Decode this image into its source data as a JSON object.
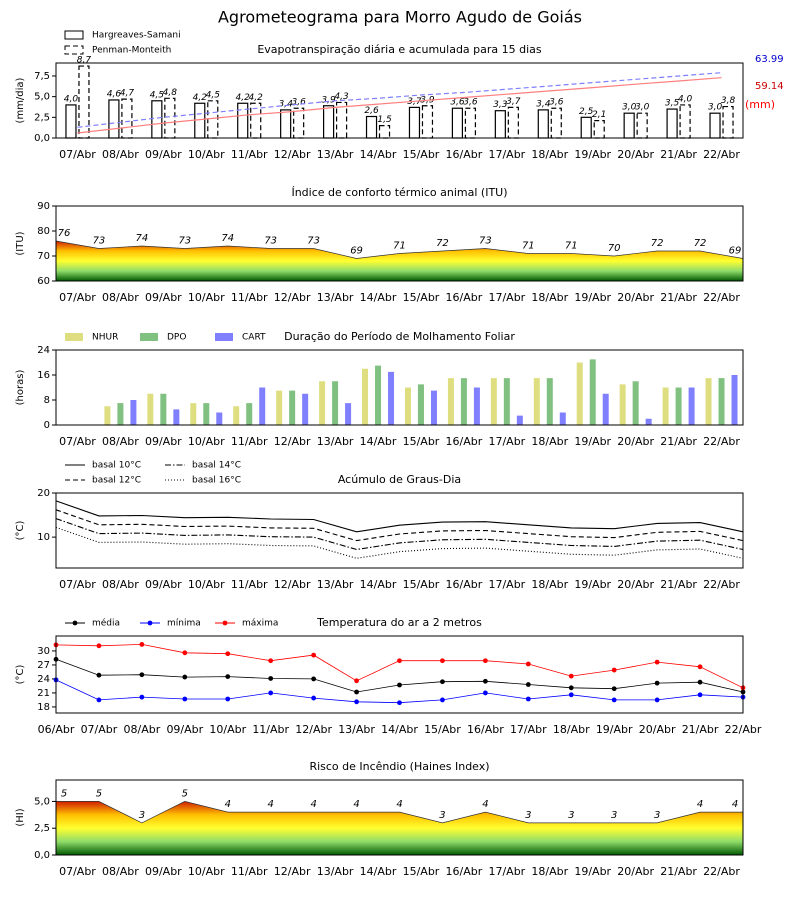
{
  "title": "Agrometeograma para Morro Agudo de Goiás",
  "chart_data": [
    {
      "type": "bar",
      "title": "Evapotranspiração diária e acumulada para 15 dias",
      "ylabel": "(mm/dia)",
      "y2label": "(mm)",
      "y2label_color": "#ff0000",
      "categories": [
        "07/Abr",
        "08/Abr",
        "09/Abr",
        "10/Abr",
        "11/Abr",
        "12/Abr",
        "13/Abr",
        "14/Abr",
        "15/Abr",
        "16/Abr",
        "17/Abr",
        "18/Abr",
        "19/Abr",
        "20/Abr",
        "21/Abr",
        "22/Abr"
      ],
      "ylim": [
        0,
        9.07
      ],
      "yticks": [
        {
          "value": 0,
          "label": "0,0"
        },
        {
          "value": 2.5,
          "label": "2,5"
        },
        {
          "value": 5,
          "label": "5,0"
        },
        {
          "value": 7.5,
          "label": "7,5"
        }
      ],
      "y2lim": [
        0,
        73.5
      ],
      "legend": "upper left",
      "legend_ncol": 1,
      "series": [
        {
          "name": "Hargreaves-Samani",
          "color": "#ffffff",
          "edgecolor": "#000000",
          "style": "solid",
          "values": [
            4.0,
            4.6,
            4.5,
            4.2,
            4.2,
            3.4,
            3.9,
            2.6,
            3.7,
            3.6,
            3.3,
            3.4,
            2.5,
            3.0,
            3.5,
            3.0
          ],
          "value_labels": [
            "4,0",
            "4,6",
            "4,5",
            "4,2",
            "4,2",
            "3,4",
            "3,9",
            "2,6",
            "3,7",
            "3,6",
            "3,3",
            "3,4",
            "2,5",
            "3,0",
            "3,5",
            "3,0"
          ]
        },
        {
          "name": "Penman-Monteith",
          "color": "#ffffff",
          "edgecolor": "#000000",
          "style": "dashed",
          "values": [
            8.7,
            4.7,
            4.8,
            4.5,
            4.2,
            3.6,
            4.3,
            1.5,
            3.9,
            3.6,
            3.7,
            3.6,
            2.1,
            3.0,
            4.0,
            3.8
          ],
          "value_labels": [
            "8,7",
            "4,7",
            "4,8",
            "4,5",
            "4,2",
            "3,6",
            "4,3",
            "1,5",
            "3,9",
            "3,6",
            "3,7",
            "3,6",
            "2,1",
            "3,0",
            "4,0",
            "3,8"
          ]
        },
        {
          "axis": "y2",
          "color": "#7f7fff",
          "style": "dashed",
          "label_color": "#0000cc",
          "values": [
            10.5,
            15.4,
            20.3,
            24.3,
            28.4,
            32.4,
            36.5,
            38.9,
            42.1,
            44.6,
            47.8,
            51.0,
            54.3,
            57.5,
            60.8,
            63.99
          ]
        },
        {
          "axis": "y2",
          "color": "#ff7f7f",
          "style": "solid",
          "label_color": "#cc0000",
          "values": [
            4.9,
            9.7,
            14.6,
            18.6,
            22.7,
            25.9,
            30.0,
            33.2,
            36.5,
            39.7,
            42.9,
            46.2,
            49.4,
            52.7,
            55.9,
            59.14
          ]
        }
      ]
    },
    {
      "type": "area",
      "title": "Índice de conforto térmico animal (ITU)",
      "ylabel": "(ITU)",
      "tick_labels_between": true,
      "categories": [
        null,
        "07/Abr",
        "08/Abr",
        "09/Abr",
        "10/Abr",
        "11/Abr",
        "12/Abr",
        "13/Abr",
        "14/Abr",
        "15/Abr",
        "16/Abr",
        "17/Abr",
        "18/Abr",
        "19/Abr",
        "20/Abr",
        "21/Abr",
        "22/Abr"
      ],
      "values": [
        76,
        73,
        74,
        73,
        74,
        73,
        73,
        69,
        71,
        72,
        73,
        71,
        71,
        70,
        72,
        72,
        69
      ],
      "ylim": [
        60,
        90
      ],
      "yticks": [
        60,
        70,
        80,
        90
      ],
      "fill_gradient": [
        "#005a00",
        "#8fdc6a",
        "#ffff30",
        "#ffc000",
        "#d02000"
      ]
    },
    {
      "type": "bar",
      "title": "Duração do Período de Molhamento Foliar",
      "ylabel": "(horas)",
      "legend": "upper left",
      "legend_ncol": 3,
      "categories": [
        "07/Abr",
        "08/Abr",
        "09/Abr",
        "10/Abr",
        "11/Abr",
        "12/Abr",
        "13/Abr",
        "14/Abr",
        "15/Abr",
        "16/Abr",
        "17/Abr",
        "18/Abr",
        "19/Abr",
        "20/Abr",
        "21/Abr",
        "22/Abr"
      ],
      "ylim": [
        0,
        24
      ],
      "yticks": [
        0,
        8,
        16,
        24
      ],
      "series": [
        {
          "name": "NHUR",
          "color": "#dede80",
          "values": [
            0,
            6,
            10,
            7,
            6,
            11,
            14,
            18,
            12,
            15,
            15,
            15,
            20,
            13,
            12,
            15
          ]
        },
        {
          "name": "DPO",
          "color": "#80c080",
          "values": [
            0,
            7,
            10,
            7,
            7,
            11,
            14,
            19,
            13,
            15,
            15,
            15,
            21,
            14,
            12,
            15
          ]
        },
        {
          "name": "CART",
          "color": "#8080ff",
          "values": [
            0,
            8,
            5,
            4,
            12,
            10,
            7,
            17,
            11,
            12,
            3,
            4,
            10,
            2,
            12,
            16
          ]
        }
      ]
    },
    {
      "type": "line",
      "title": "Acúmulo de Graus-Dia",
      "ylabel": "(°C)",
      "tick_labels_between": true,
      "legend": "upper left",
      "legend_ncol": 2,
      "categories": [
        null,
        "07/Abr",
        "08/Abr",
        "09/Abr",
        "10/Abr",
        "11/Abr",
        "12/Abr",
        "13/Abr",
        "14/Abr",
        "15/Abr",
        "16/Abr",
        "17/Abr",
        "18/Abr",
        "19/Abr",
        "20/Abr",
        "21/Abr",
        "22/Abr"
      ],
      "ylim": [
        3,
        20
      ],
      "yticks": [
        10,
        20
      ],
      "series": [
        {
          "name": "basal 10°C",
          "color": "#000000",
          "style": "solid",
          "values": [
            18.2,
            14.8,
            14.9,
            14.4,
            14.5,
            14.1,
            14.0,
            11.2,
            12.7,
            13.4,
            13.5,
            12.8,
            12.1,
            11.9,
            13.1,
            13.3,
            11.2
          ]
        },
        {
          "name": "basal 12°C",
          "color": "#000000",
          "style": "dashed",
          "values": [
            16.2,
            12.8,
            12.9,
            12.4,
            12.5,
            12.1,
            12.0,
            9.2,
            10.7,
            11.4,
            11.5,
            10.8,
            10.1,
            9.9,
            11.1,
            11.3,
            9.2
          ]
        },
        {
          "name": "basal 14°C",
          "color": "#000000",
          "style": "dashdot",
          "values": [
            14.2,
            10.8,
            10.9,
            10.4,
            10.5,
            10.1,
            10.0,
            7.2,
            8.7,
            9.4,
            9.5,
            8.8,
            8.1,
            7.9,
            9.1,
            9.3,
            7.2
          ]
        },
        {
          "name": "basal 16°C",
          "color": "#000000",
          "style": "dotted",
          "values": [
            12.2,
            8.8,
            8.9,
            8.4,
            8.5,
            8.1,
            8.0,
            5.2,
            6.7,
            7.4,
            7.5,
            6.8,
            6.1,
            5.9,
            7.1,
            7.3,
            5.2
          ]
        }
      ]
    },
    {
      "type": "line",
      "title": "Temperatura do ar a 2 metros",
      "ylabel": "(°C)",
      "legend": "upper left",
      "legend_ncol": 3,
      "marker": true,
      "categories": [
        "06/Abr",
        "07/Abr",
        "08/Abr",
        "09/Abr",
        "10/Abr",
        "11/Abr",
        "12/Abr",
        "13/Abr",
        "14/Abr",
        "15/Abr",
        "16/Abr",
        "17/Abr",
        "18/Abr",
        "19/Abr",
        "20/Abr",
        "21/Abr",
        "22/Abr"
      ],
      "ylim": [
        16.7,
        33.2
      ],
      "yticks": [
        18,
        21,
        24,
        27,
        30
      ],
      "series": [
        {
          "name": "média",
          "color": "#000000",
          "style": "solid",
          "values": [
            28.2,
            24.8,
            24.9,
            24.4,
            24.5,
            24.1,
            24.0,
            21.2,
            22.7,
            23.4,
            23.5,
            22.8,
            22.1,
            21.9,
            23.1,
            23.3,
            21.2
          ]
        },
        {
          "name": "mínima",
          "color": "#0000ff",
          "style": "solid",
          "values": [
            23.8,
            19.5,
            20.1,
            19.7,
            19.7,
            21.0,
            19.9,
            19.1,
            18.9,
            19.5,
            21.0,
            19.7,
            20.6,
            19.5,
            19.5,
            20.6,
            20.1
          ]
        },
        {
          "name": "máxima",
          "color": "#ff0000",
          "style": "solid",
          "values": [
            31.3,
            31.1,
            31.4,
            29.6,
            29.4,
            27.9,
            29.1,
            23.6,
            27.9,
            27.9,
            27.9,
            27.2,
            24.6,
            25.9,
            27.6,
            26.6,
            22.1
          ]
        }
      ]
    },
    {
      "type": "area",
      "title": "Risco de Incêndio (Haines Index)",
      "ylabel": "(HI)",
      "tick_labels_between": true,
      "categories": [
        null,
        "07/Abr",
        "08/Abr",
        "09/Abr",
        "10/Abr",
        "11/Abr",
        "12/Abr",
        "13/Abr",
        "14/Abr",
        "15/Abr",
        "16/Abr",
        "17/Abr",
        "18/Abr",
        "19/Abr",
        "20/Abr",
        "21/Abr",
        "22/Abr"
      ],
      "values": [
        5,
        5,
        3,
        5,
        4,
        4,
        4,
        4,
        4,
        3,
        4,
        3,
        3,
        3,
        3,
        4,
        4
      ],
      "ylim": [
        0,
        7
      ],
      "yticks": [
        {
          "value": 0,
          "label": "0,0"
        },
        {
          "value": 2.5,
          "label": "2,5"
        },
        {
          "value": 5,
          "label": "5,0"
        }
      ],
      "fill_gradient": [
        "#005a00",
        "#8fdc6a",
        "#ffff30",
        "#ffc000",
        "#d02000"
      ]
    }
  ]
}
